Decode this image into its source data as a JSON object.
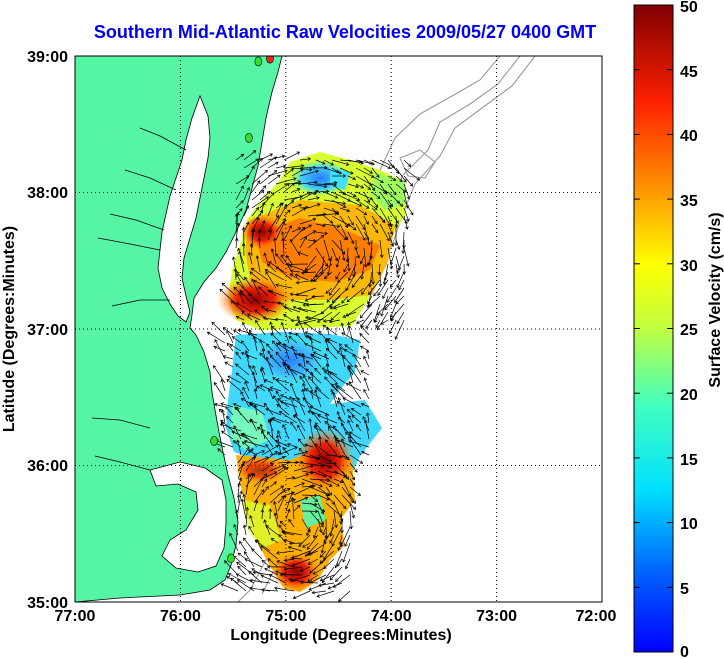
{
  "title": "Southern Mid-Atlantic Raw Velocities 2009/05/27 0400 GMT",
  "xlabel": "Longitude (Degrees:Minutes)",
  "ylabel": "Latitude (Degrees:Minutes)",
  "x_ticks": [
    "77:00",
    "76:00",
    "75:00",
    "74:00",
    "73:00",
    "72:00"
  ],
  "y_ticks": [
    "39:00",
    "38:00",
    "37:00",
    "36:00",
    "35:00"
  ],
  "colorbar": {
    "label": "Surface Velocity (cm/s)",
    "ticks": [
      "50",
      "45",
      "40",
      "35",
      "30",
      "25",
      "20",
      "15",
      "10",
      "5",
      "0"
    ],
    "range": [
      0,
      50
    ]
  },
  "colors": {
    "land": "#55f5a5",
    "ocean": "#ffffff",
    "isobath": "#9a9a9a",
    "title": "#0000ee",
    "station": "#33dd33",
    "station_alt": "#ee2222"
  },
  "map_extent": {
    "lon": [
      -77,
      -72
    ],
    "lat": [
      35,
      39
    ]
  },
  "stations": [
    {
      "lon": -75.15,
      "lat": 38.98,
      "color": "#ee2222"
    },
    {
      "lon": -75.26,
      "lat": 38.96,
      "color": "#33dd33"
    },
    {
      "lon": -75.35,
      "lat": 38.4,
      "color": "#33dd33"
    },
    {
      "lon": -75.68,
      "lat": 36.18,
      "color": "#33dd33"
    },
    {
      "lon": -75.52,
      "lat": 35.32,
      "color": "#33dd33"
    }
  ]
}
